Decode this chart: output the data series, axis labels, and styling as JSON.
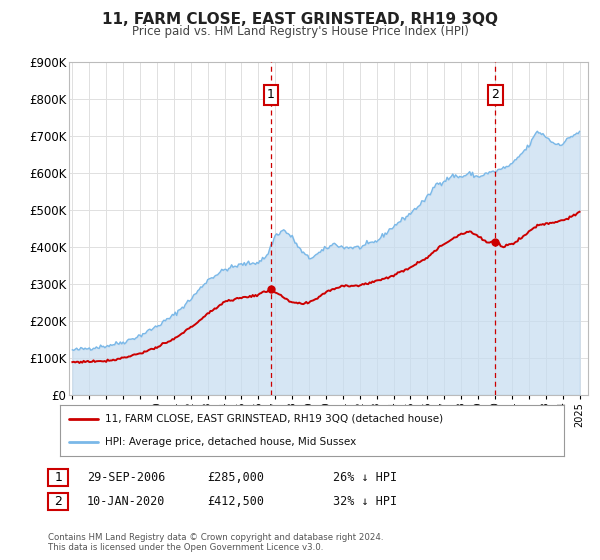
{
  "title": "11, FARM CLOSE, EAST GRINSTEAD, RH19 3QQ",
  "subtitle": "Price paid vs. HM Land Registry's House Price Index (HPI)",
  "legend_line1": "11, FARM CLOSE, EAST GRINSTEAD, RH19 3QQ (detached house)",
  "legend_line2": "HPI: Average price, detached house, Mid Sussex",
  "footnote1": "Contains HM Land Registry data © Crown copyright and database right 2024.",
  "footnote2": "This data is licensed under the Open Government Licence v3.0.",
  "hpi_color": "#7ab8e8",
  "hpi_fill_color": "#c5dcf0",
  "price_color": "#cc0000",
  "marker_color": "#cc0000",
  "vline_color": "#cc0000",
  "background_color": "#ffffff",
  "plot_bg_color": "#ffffff",
  "grid_color": "#e0e0e0",
  "sale1_label": "29-SEP-2006",
  "sale1_price": 285000,
  "sale1_pct": "26% ↓ HPI",
  "sale1_x": 2006.747,
  "sale1_y": 285000,
  "sale2_label": "10-JAN-2020",
  "sale2_price": 412500,
  "sale2_pct": "32% ↓ HPI",
  "sale2_x": 2020.027,
  "sale2_y": 412500,
  "xmin": 1994.8,
  "xmax": 2025.5,
  "ymin": 0,
  "ymax": 900000,
  "yticks": [
    0,
    100000,
    200000,
    300000,
    400000,
    500000,
    600000,
    700000,
    800000,
    900000
  ],
  "ytick_labels": [
    "£0",
    "£100K",
    "£200K",
    "£300K",
    "£400K",
    "£500K",
    "£600K",
    "£700K",
    "£800K",
    "£900K"
  ],
  "xticks": [
    1995,
    1996,
    1997,
    1998,
    1999,
    2000,
    2001,
    2002,
    2003,
    2004,
    2005,
    2006,
    2007,
    2008,
    2009,
    2010,
    2011,
    2012,
    2013,
    2014,
    2015,
    2016,
    2017,
    2018,
    2019,
    2020,
    2021,
    2022,
    2023,
    2024,
    2025
  ],
  "hpi_waypoints_x": [
    1995.0,
    1996.0,
    1997.0,
    1998.0,
    1999.0,
    2000.0,
    2001.0,
    2002.0,
    2003.0,
    2004.0,
    2005.0,
    2006.0,
    2006.5,
    2007.0,
    2007.5,
    2008.0,
    2008.5,
    2009.0,
    2009.5,
    2010.0,
    2010.5,
    2011.0,
    2012.0,
    2013.0,
    2014.0,
    2015.0,
    2016.0,
    2016.5,
    2017.0,
    2017.5,
    2018.0,
    2018.5,
    2019.0,
    2019.5,
    2020.0,
    2020.5,
    2021.0,
    2021.5,
    2022.0,
    2022.5,
    2023.0,
    2023.5,
    2024.0,
    2024.5,
    2025.0
  ],
  "hpi_waypoints_y": [
    120000,
    126000,
    132000,
    142000,
    160000,
    185000,
    215000,
    258000,
    310000,
    338000,
    352000,
    358000,
    375000,
    430000,
    445000,
    425000,
    390000,
    368000,
    380000,
    395000,
    408000,
    398000,
    398000,
    415000,
    455000,
    490000,
    533000,
    568000,
    578000,
    592000,
    588000,
    598000,
    588000,
    598000,
    603000,
    612000,
    622000,
    648000,
    672000,
    712000,
    698000,
    678000,
    678000,
    698000,
    710000
  ],
  "price_waypoints_x": [
    1995.0,
    1996.0,
    1997.0,
    1997.5,
    1998.0,
    1999.0,
    2000.0,
    2001.0,
    2002.0,
    2003.0,
    2004.0,
    2005.0,
    2006.0,
    2006.747,
    2007.2,
    2007.8,
    2008.5,
    2009.0,
    2009.5,
    2010.0,
    2011.0,
    2012.0,
    2013.0,
    2014.0,
    2015.0,
    2016.0,
    2016.5,
    2017.0,
    2017.5,
    2018.0,
    2018.5,
    2019.0,
    2019.5,
    2020.027,
    2020.5,
    2021.0,
    2021.5,
    2022.0,
    2022.5,
    2023.0,
    2023.5,
    2024.0,
    2024.5,
    2025.0
  ],
  "price_waypoints_y": [
    88000,
    90000,
    92000,
    95000,
    100000,
    112000,
    128000,
    150000,
    182000,
    218000,
    252000,
    262000,
    270000,
    285000,
    272000,
    252000,
    245000,
    248000,
    262000,
    278000,
    295000,
    295000,
    308000,
    322000,
    345000,
    372000,
    390000,
    408000,
    422000,
    435000,
    442000,
    428000,
    412000,
    412500,
    400000,
    408000,
    422000,
    440000,
    458000,
    462000,
    466000,
    472000,
    480000,
    492000
  ]
}
